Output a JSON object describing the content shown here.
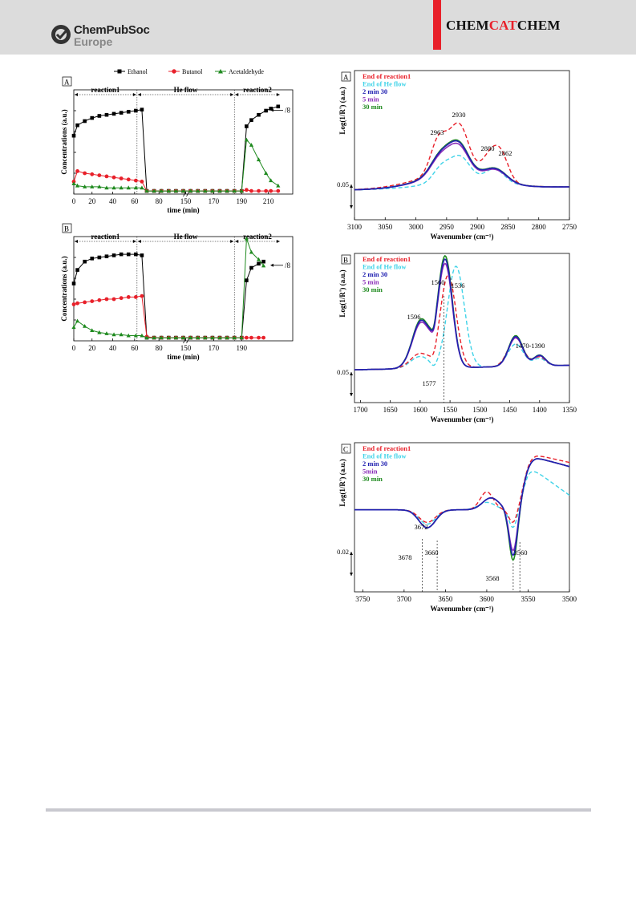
{
  "header": {
    "publisher_name": "ChemPubSoc",
    "publisher_sub": "Europe",
    "journal_pre": "CHEM",
    "journal_mid": "CAT",
    "journal_post": "CHEM"
  },
  "left_figure": {
    "legend": [
      "Ethanol",
      "Butanol",
      "Acetaldehyde"
    ],
    "panels": [
      {
        "panel": "A",
        "phases": [
          "reaction1",
          "He flow",
          "reaction2"
        ],
        "ylabel": "Concentrations (a.u.)",
        "xlabel": "time (min)",
        "xticks": [
          "0",
          "20",
          "40",
          "60",
          "80",
          "150",
          "170",
          "190",
          "210"
        ],
        "annotation": "/8",
        "chart_data": {
          "type": "line",
          "series": [
            {
              "name": "Ethanol",
              "x": [
                0,
                3,
                9,
                15,
                21,
                27,
                33,
                39,
                45,
                51,
                56,
                60,
                66,
                72,
                78,
                84,
                90,
                96,
                102,
                108,
                114,
                120,
                126,
                132,
                138,
                142,
                146,
                152,
                158,
                162,
                168
              ],
              "y": [
                0.56,
                0.66,
                0.7,
                0.73,
                0.75,
                0.76,
                0.77,
                0.78,
                0.79,
                0.8,
                0.81,
                0.03,
                0.03,
                0.03,
                0.03,
                0.03,
                0.03,
                0.03,
                0.03,
                0.03,
                0.03,
                0.03,
                0.03,
                0.03,
                0.03,
                0.65,
                0.71,
                0.76,
                0.8,
                0.82,
                0.84
              ]
            },
            {
              "name": "Butanol",
              "x": [
                0,
                3,
                9,
                15,
                21,
                27,
                33,
                39,
                45,
                51,
                56,
                60,
                66,
                72,
                78,
                84,
                90,
                96,
                102,
                108,
                114,
                120,
                126,
                132,
                138,
                142,
                146,
                152,
                158,
                162,
                168
              ],
              "y": [
                0.12,
                0.22,
                0.2,
                0.19,
                0.18,
                0.17,
                0.16,
                0.15,
                0.14,
                0.13,
                0.12,
                0.03,
                0.03,
                0.03,
                0.03,
                0.03,
                0.03,
                0.03,
                0.03,
                0.03,
                0.03,
                0.03,
                0.03,
                0.03,
                0.03,
                0.04,
                0.03,
                0.03,
                0.03,
                0.03,
                0.03
              ]
            },
            {
              "name": "Acetaldehyde",
              "x": [
                0,
                3,
                9,
                15,
                21,
                27,
                33,
                39,
                45,
                51,
                56,
                60,
                66,
                72,
                78,
                84,
                90,
                96,
                102,
                108,
                114,
                120,
                126,
                132,
                138,
                142,
                146,
                152,
                158,
                162,
                168
              ],
              "y": [
                0.1,
                0.08,
                0.07,
                0.07,
                0.07,
                0.06,
                0.06,
                0.06,
                0.06,
                0.06,
                0.06,
                0.03,
                0.03,
                0.03,
                0.03,
                0.03,
                0.03,
                0.03,
                0.03,
                0.03,
                0.03,
                0.03,
                0.03,
                0.03,
                0.03,
                0.52,
                0.47,
                0.33,
                0.2,
                0.13,
                0.08
              ]
            }
          ]
        }
      },
      {
        "panel": "B",
        "phases": [
          "reaction1",
          "He flow",
          "reaction2"
        ],
        "ylabel": "Concentrations (a.u.)",
        "xlabel": "time (min)",
        "xticks": [
          "0",
          "20",
          "40",
          "60",
          "80",
          "150",
          "170",
          "190"
        ],
        "annotation": "/8",
        "chart_data": {
          "type": "line",
          "series": [
            {
              "name": "Ethanol",
              "x": [
                0,
                3,
                9,
                15,
                21,
                27,
                33,
                39,
                45,
                51,
                56,
                60,
                66,
                72,
                78,
                84,
                90,
                96,
                102,
                108,
                114,
                120,
                126,
                132,
                138,
                142,
                146,
                152,
                156
              ],
              "y": [
                0.55,
                0.68,
                0.76,
                0.79,
                0.8,
                0.81,
                0.82,
                0.83,
                0.83,
                0.83,
                0.82,
                0.03,
                0.03,
                0.03,
                0.03,
                0.03,
                0.03,
                0.03,
                0.03,
                0.03,
                0.03,
                0.03,
                0.03,
                0.03,
                0.03,
                0.58,
                0.7,
                0.74,
                0.76
              ]
            },
            {
              "name": "Butanol",
              "x": [
                0,
                3,
                9,
                15,
                21,
                27,
                33,
                39,
                45,
                51,
                56,
                60,
                66,
                72,
                78,
                84,
                90,
                96,
                102,
                108,
                114,
                120,
                126,
                132,
                138,
                142,
                146,
                152,
                156
              ],
              "y": [
                0.35,
                0.36,
                0.37,
                0.38,
                0.39,
                0.4,
                0.4,
                0.41,
                0.42,
                0.42,
                0.43,
                0.04,
                0.03,
                0.03,
                0.03,
                0.03,
                0.03,
                0.03,
                0.03,
                0.03,
                0.03,
                0.03,
                0.03,
                0.03,
                0.03,
                0.03,
                0.03,
                0.03,
                0.03
              ]
            },
            {
              "name": "Acetaldehyde",
              "x": [
                0,
                3,
                9,
                15,
                21,
                27,
                33,
                39,
                45,
                51,
                56,
                60,
                66,
                72,
                78,
                84,
                90,
                96,
                102,
                108,
                114,
                120,
                126,
                132,
                138,
                142,
                146,
                152,
                156
              ],
              "y": [
                0.13,
                0.19,
                0.14,
                0.1,
                0.08,
                0.07,
                0.06,
                0.06,
                0.05,
                0.05,
                0.05,
                0.03,
                0.03,
                0.03,
                0.03,
                0.03,
                0.03,
                0.03,
                0.03,
                0.03,
                0.03,
                0.03,
                0.03,
                0.03,
                0.03,
                0.98,
                0.85,
                0.78,
                0.72
              ]
            }
          ]
        }
      }
    ]
  },
  "right_figure": {
    "legend": [
      {
        "label": "End of reaction1",
        "color": "#e8202a"
      },
      {
        "label": "End of He flow",
        "color": "#3fd3e8"
      },
      {
        "label": "2 min 30",
        "color": "#2020b0"
      },
      {
        "label": "5 min",
        "color": "#8a2fb8"
      },
      {
        "label": "30 min",
        "color": "#1f8a1f"
      }
    ],
    "panels": [
      {
        "panel": "A",
        "ylabel": "Log(1/R') (a.u.)",
        "xlabel": "Wavenumber (cm⁻¹)",
        "xticks": [
          "3100",
          "3050",
          "3000",
          "2950",
          "2900",
          "2850",
          "2800",
          "2750"
        ],
        "scale": "0.05",
        "peaks": [
          "2963",
          "2930",
          "2880",
          "2862"
        ],
        "legend_labels": [
          "End of reaction1",
          "End of He flow",
          "2 min 30",
          "5 min",
          "30 min"
        ]
      },
      {
        "panel": "B",
        "ylabel": "Log(1/R') (a.u.)",
        "xlabel": "Wavenumber (cm⁻¹)",
        "xticks": [
          "1700",
          "1650",
          "1600",
          "1550",
          "1500",
          "1450",
          "1400",
          "1350"
        ],
        "scale": "0.05",
        "peaks": [
          "1596",
          "1560",
          "1536",
          "1577",
          "1470-1390"
        ],
        "legend_labels": [
          "End of reaction1",
          "End of He flow",
          "2 min 30",
          "5 min",
          "30 min"
        ]
      },
      {
        "panel": "C",
        "ylabel": "Log(1/R') (a.u.)",
        "xlabel": "Wavenumber (cm⁻¹)",
        "xticks": [
          "3750",
          "3700",
          "3650",
          "3600",
          "3550",
          "3500"
        ],
        "scale": "0.02",
        "peaks": [
          "3672",
          "3678",
          "3660",
          "3568",
          "3560"
        ],
        "legend_labels": [
          "End of reaction1",
          "End of He flow",
          "2 min 30",
          "5min",
          "30 min"
        ]
      }
    ]
  }
}
